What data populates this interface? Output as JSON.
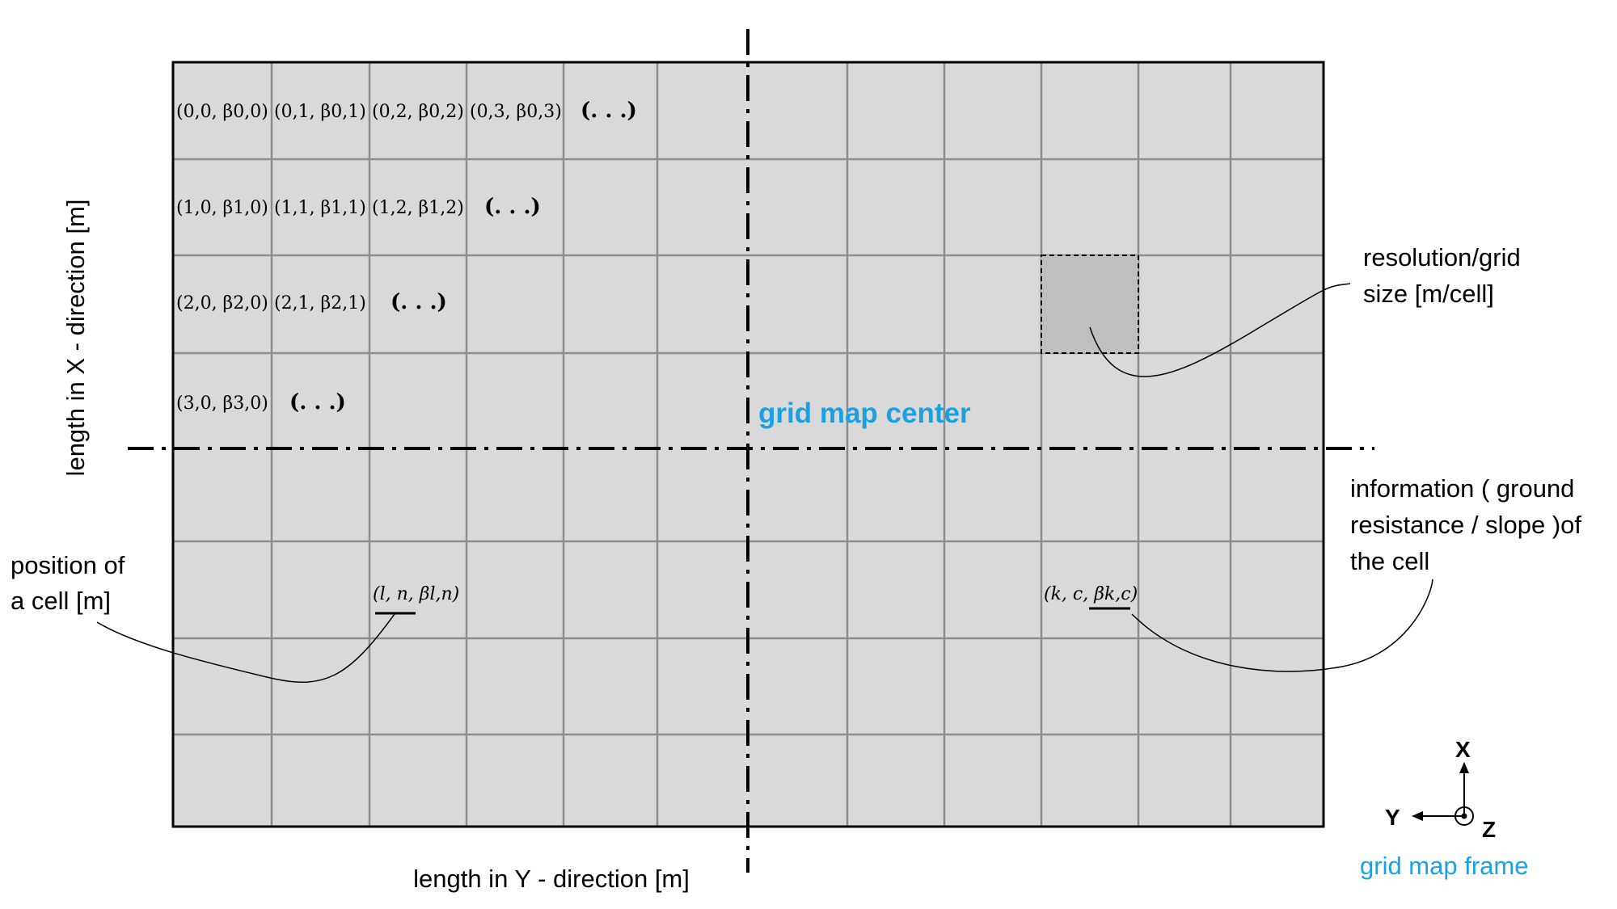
{
  "cells": {
    "r0c0": "(0,0, β0,0)",
    "r0c1": "(0,1, β0,1)",
    "r0c2": "(0,2, β0,2)",
    "r0c3": "(0,3, β0,3)",
    "r0_more": "(. . .)",
    "r1c0": "(1,0, β1,0)",
    "r1c1": "(1,1, β1,1)",
    "r1c2": "(1,2, β1,2)",
    "r1_more": "(. . .)",
    "r2c0": "(2,0, β2,0)",
    "r2c1": "(2,1, β2,1)",
    "r2_more": "(. . .)",
    "r3c0": "(3,0, β3,0)",
    "r3_more": "(. . .)",
    "cell_ln": "(l, n, βl,n)",
    "cell_kc": "(k, c, βk,c)"
  },
  "labels": {
    "center": "grid map center",
    "x_axis": "length in X - direction [m]",
    "y_axis": "length in Y - direction [m]",
    "resolution_line1": "resolution/grid",
    "resolution_line2": "size [m/cell]",
    "info_line1": "information ( ground",
    "info_line2": "resistance / slope )of",
    "info_line3": "the cell",
    "position_line1": "position of",
    "position_line2": "a cell [m]"
  },
  "frame": {
    "x": "X",
    "y": "Y",
    "z": "Z",
    "caption": "grid map frame"
  },
  "colors": {
    "grid_fill": "#d9d9d9",
    "grid_line": "#8c8c8c",
    "highlight_cell": "#bfbfbf",
    "accent": "#1ba1e2",
    "ink": "#000000"
  }
}
